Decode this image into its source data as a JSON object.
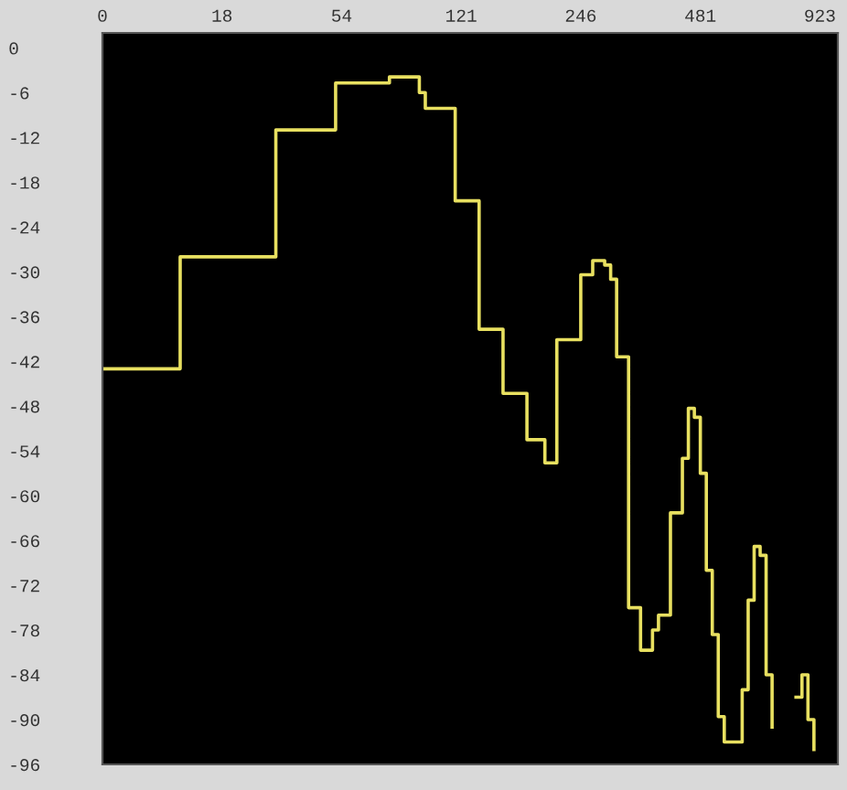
{
  "chart_data": {
    "type": "step",
    "categories": [
      "0",
      null,
      null,
      null,
      null,
      null,
      null,
      null,
      null,
      null,
      null,
      null,
      null,
      null,
      null,
      null,
      null,
      null,
      null,
      null,
      "18",
      null,
      null,
      null,
      null,
      null,
      null,
      null,
      null,
      null,
      null,
      null,
      null,
      null,
      null,
      null,
      null,
      null,
      null,
      null,
      "54",
      null,
      null,
      null,
      null,
      null,
      null,
      null,
      null,
      null,
      null,
      null,
      null,
      null,
      null,
      null,
      null,
      null,
      null,
      null,
      "121",
      null,
      null,
      null,
      null,
      null,
      null,
      null,
      null,
      null,
      null,
      null,
      null,
      null,
      null,
      null,
      null,
      null,
      null,
      null,
      "246",
      null,
      null,
      null,
      null,
      null,
      null,
      null,
      null,
      null,
      null,
      null,
      null,
      null,
      null,
      null,
      null,
      null,
      null,
      null,
      "481",
      null,
      null,
      null,
      null,
      null,
      null,
      null,
      null,
      null,
      null,
      null,
      null,
      null,
      null,
      null,
      null,
      null,
      null,
      null,
      "923",
      null,
      null,
      null
    ],
    "series": [
      {
        "color": "#e8e060",
        "values": [
          -43,
          -43,
          -43,
          -43,
          -43,
          -43,
          -43,
          -43,
          -43,
          -43,
          -43,
          -43,
          -43,
          -28,
          -28,
          -28,
          -28,
          -28,
          -28,
          -28,
          -28,
          -28,
          -28,
          -28,
          -28,
          -28,
          -28,
          -28,
          -28,
          -11,
          -11,
          -11,
          -11,
          -11,
          -11,
          -11,
          -11,
          -11,
          -11,
          -4.7,
          -4.7,
          -4.7,
          -4.7,
          -4.7,
          -4.7,
          -4.7,
          -4.7,
          -4.7,
          -3.9,
          -3.9,
          -3.9,
          -3.9,
          -3.9,
          -6,
          -8.1,
          -8.1,
          -8.1,
          -8.1,
          -8.1,
          -20.5,
          -20.5,
          -20.5,
          -20.5,
          -37.7,
          -37.7,
          -37.7,
          -37.7,
          -46.3,
          -46.3,
          -46.3,
          -46.3,
          -52.5,
          -52.5,
          -52.5,
          -55.6,
          -55.6,
          -39.1,
          -39.1,
          -39.1,
          -39.1,
          -30.4,
          -30.4,
          -28.5,
          -28.5,
          -29.1,
          -31,
          -41.4,
          -41.4,
          -75,
          -75,
          -80.7,
          -80.7,
          -78,
          -76,
          -76,
          -62.3,
          -62.3,
          -55,
          -48.3,
          -49.5,
          -57,
          -70,
          -78.6,
          -89.6,
          -93,
          -93,
          -93,
          -86,
          -74,
          -66.8,
          -68,
          -84,
          -91,
          null,
          null,
          null,
          -87,
          -84,
          -90,
          -94,
          null,
          null,
          null,
          null
        ]
      }
    ],
    "ylim": [
      -96,
      2
    ],
    "yticks": [
      0,
      -6,
      -12,
      -18,
      -24,
      -30,
      -36,
      -42,
      -48,
      -54,
      -60,
      -66,
      -72,
      -78,
      -84,
      -90,
      -96
    ],
    "grid": false,
    "legend": false
  }
}
